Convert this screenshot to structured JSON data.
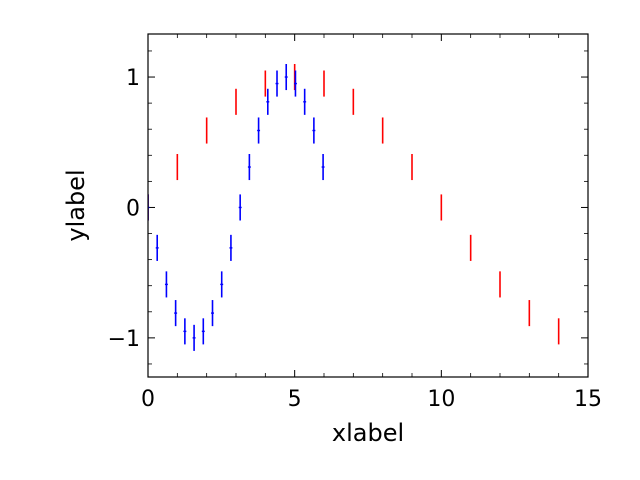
{
  "chart_data": {
    "type": "scatter",
    "title": "",
    "xlabel": "xlabel",
    "ylabel": "ylabel",
    "xlim": [
      0,
      15
    ],
    "ylim": [
      -1.3,
      1.33
    ],
    "xticks": [
      0,
      5,
      10,
      15
    ],
    "xtick_labels": [
      "0",
      "5",
      "10",
      "15"
    ],
    "yticks": [
      -1,
      0,
      1
    ],
    "ytick_labels": [
      "−1",
      "0",
      "1"
    ],
    "xminor_step": 1,
    "yminor_step": 0.2,
    "grid": false,
    "legend": "none",
    "series": [
      {
        "color": "#ff0000",
        "marker": "vertical error bar (no marker)",
        "x": [
          0,
          1,
          2,
          3,
          4,
          5,
          6,
          7,
          8,
          9,
          10,
          11,
          12,
          13,
          14
        ],
        "y": [
          0.0,
          0.31,
          0.59,
          0.81,
          0.95,
          1.0,
          0.95,
          0.81,
          0.59,
          0.31,
          0.0,
          -0.31,
          -0.59,
          -0.81,
          -0.95
        ],
        "yerr": [
          0.1,
          0.1,
          0.1,
          0.1,
          0.1,
          0.1,
          0.1,
          0.1,
          0.1,
          0.1,
          0.1,
          0.1,
          0.1,
          0.1,
          0.1
        ]
      },
      {
        "color": "#0000ff",
        "marker": "error bar with short horizontal cap",
        "x": [
          0.0,
          0.314,
          0.628,
          0.942,
          1.257,
          1.571,
          1.885,
          2.199,
          2.513,
          2.827,
          3.142,
          3.456,
          3.77,
          4.084,
          4.398,
          4.712,
          5.027,
          5.341,
          5.655,
          5.969
        ],
        "y": [
          0.0,
          -0.31,
          -0.59,
          -0.81,
          -0.95,
          -1.0,
          -0.95,
          -0.81,
          -0.59,
          -0.31,
          0.0,
          0.31,
          0.59,
          0.81,
          0.95,
          1.0,
          0.95,
          0.81,
          0.59,
          0.31
        ],
        "yerr": [
          0.1,
          0.1,
          0.1,
          0.1,
          0.1,
          0.1,
          0.1,
          0.1,
          0.1,
          0.1,
          0.1,
          0.1,
          0.1,
          0.1,
          0.1,
          0.1,
          0.1,
          0.1,
          0.1,
          0.1
        ],
        "xerr": [
          0.05,
          0.05,
          0.05,
          0.05,
          0.05,
          0.05,
          0.05,
          0.05,
          0.05,
          0.05,
          0.05,
          0.05,
          0.05,
          0.05,
          0.05,
          0.05,
          0.05,
          0.05,
          0.05,
          0.05
        ]
      }
    ]
  }
}
